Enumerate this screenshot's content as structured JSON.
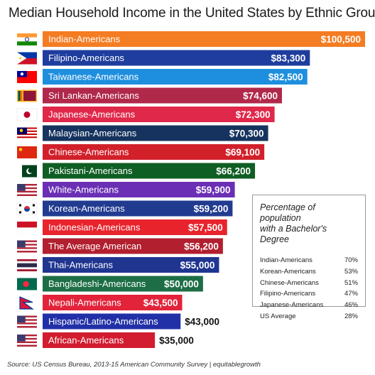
{
  "chart_data": {
    "type": "bar",
    "orientation": "horizontal",
    "title": "Median Household Income in the United States  by Ethnic Group",
    "categories": [
      "Indian-Americans",
      "Filipino-Americans",
      "Taiwanese-Americans",
      "Sri Lankan-Americans",
      "Japanese-Americans",
      "Malaysian-Americans",
      "Chinese-Americans",
      "Pakistani-Americans",
      "White-Americans",
      "Korean-Americans",
      "Indonesian-Americans",
      "The Average American",
      "Thai-Americans",
      "Bangladeshi-Americans",
      "Nepali-Americans",
      "Hispanic/Latino-Americans",
      "African-Americans"
    ],
    "values": [
      100500,
      83300,
      82500,
      74600,
      72300,
      70300,
      69100,
      66200,
      59900,
      59200,
      57500,
      56200,
      55000,
      50000,
      43500,
      43000,
      35000
    ],
    "value_labels": [
      "$100,500",
      "$83,300",
      "$82,500",
      "$74,600",
      "$72,300",
      "$70,300",
      "$69,100",
      "$66,200",
      "$59,900",
      "$59,200",
      "$57,500",
      "$56,200",
      "$55,000",
      "$50,000",
      "$43,500",
      "$43,000",
      "$35,000"
    ],
    "colors": [
      "#f47c22",
      "#1f3d9e",
      "#1e8fde",
      "#b0284a",
      "#e0284a",
      "#15335e",
      "#d1202a",
      "#0f5e23",
      "#6a2fb5",
      "#213b90",
      "#e8232c",
      "#b21f2f",
      "#1f3590",
      "#1d6e46",
      "#e2233a",
      "#2230a8",
      "#d21c2f"
    ],
    "label_inside": [
      true,
      true,
      true,
      true,
      true,
      true,
      true,
      true,
      true,
      true,
      true,
      true,
      true,
      true,
      true,
      false,
      false
    ],
    "flags": [
      "india-flag-icon",
      "philippines-flag-icon",
      "taiwan-flag-icon",
      "sri-lanka-flag-icon",
      "japan-flag-icon",
      "malaysia-flag-icon",
      "china-flag-icon",
      "pakistan-flag-icon",
      "usa-flag-icon",
      "south-korea-flag-icon",
      "indonesia-flag-icon",
      "usa-flag-icon",
      "thailand-flag-icon",
      "bangladesh-flag-icon",
      "nepal-flag-icon",
      "usa-flag-icon",
      "usa-flag-icon"
    ],
    "xlim": [
      0,
      100500
    ]
  },
  "education_box": {
    "title": "Percentage of population\nwith a Bachelor's Degree",
    "rows": [
      {
        "group": "Indian-Americans",
        "percent": "70%"
      },
      {
        "group": "Korean-Americans",
        "percent": "53%"
      },
      {
        "group": "Chinese-Americans",
        "percent": "51%"
      },
      {
        "group": "Filipino-Americans",
        "percent": "47%"
      },
      {
        "group": "Japanese-Americans",
        "percent": "46%"
      },
      {
        "group": "US Average",
        "percent": "28%"
      }
    ]
  },
  "source": "Source: US Census Bureau, 2013-15 American Community Survey | equitablegrowth"
}
